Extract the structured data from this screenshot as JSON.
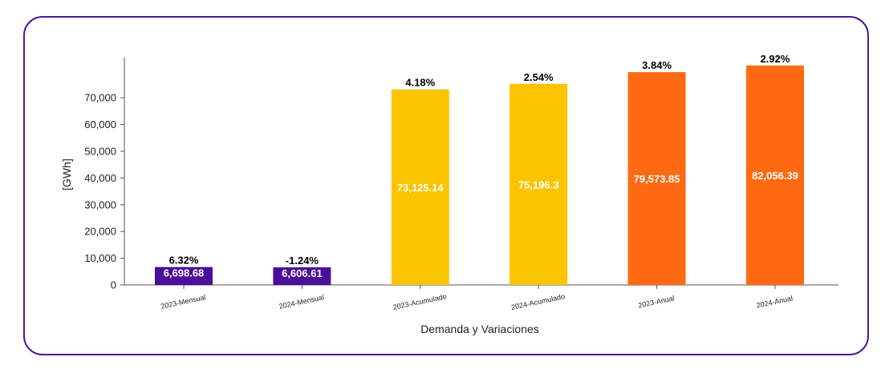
{
  "chart_data": {
    "type": "bar",
    "categories": [
      "2023-Mensual",
      "2024-Mensual",
      "2023-Acumulado",
      "2024-Acumulado",
      "2023-Anual",
      "2024-Anual"
    ],
    "values": [
      6698.68,
      6606.61,
      73125.14,
      75196.3,
      79573.85,
      82056.39
    ],
    "value_labels": [
      "6,698.68",
      "6,606.61",
      "73,125.14",
      "75,196.3",
      "79,573.85",
      "82,056.39"
    ],
    "variation_labels": [
      "6.32%",
      "-1.24%",
      "4.18%",
      "2.54%",
      "3.84%",
      "2.92%"
    ],
    "colors": [
      "#4b0e9b",
      "#4b0e9b",
      "#fbc400",
      "#fbc400",
      "#ff6a13",
      "#ff6a13"
    ],
    "xlabel": "Demanda y Variaciones",
    "ylabel": "[GWh]",
    "ylim": [
      0,
      85000
    ],
    "yticks": [
      0,
      10000,
      20000,
      30000,
      40000,
      50000,
      60000,
      70000
    ],
    "ytick_labels": [
      "0",
      "10,000",
      "20,000",
      "30,000",
      "40,000",
      "50,000",
      "60,000",
      "70,000"
    ],
    "grid": false,
    "legend": "none"
  }
}
